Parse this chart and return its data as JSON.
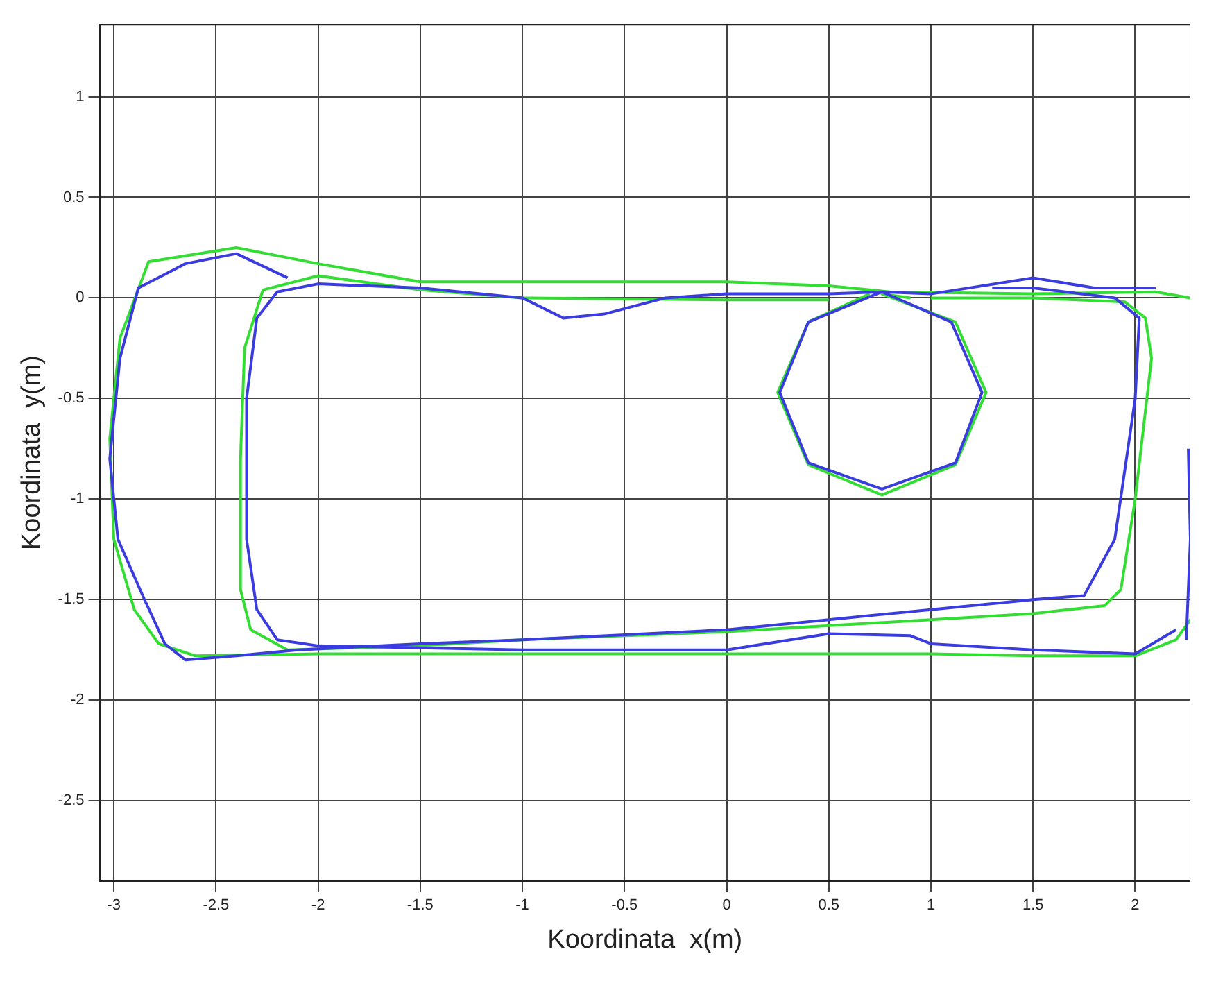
{
  "chart_data": {
    "type": "line",
    "xlabel": "Koordinata  x(m)",
    "ylabel": "Koordinata  y(m)",
    "xlim": [
      -3.07,
      2.27
    ],
    "ylim": [
      -2.9,
      1.36
    ],
    "xticks": [
      -3,
      -2.5,
      -2,
      -1.5,
      -1,
      -0.5,
      0,
      0.5,
      1,
      1.5,
      2
    ],
    "yticks": [
      -2.5,
      -2,
      -1.5,
      -1,
      -0.5,
      0,
      0.5,
      1
    ],
    "grid": true,
    "legend": false,
    "marker": "none",
    "line_style": "solid",
    "series": [
      {
        "color": "#3a3ce0",
        "x": [
          -2.15,
          -2.4,
          -2.65,
          -2.88,
          -2.97,
          -3.02,
          -2.98,
          -2.85,
          -2.75,
          -2.65,
          -2.4,
          -2.1,
          -1.5,
          -1.0,
          0,
          0.5,
          1.0,
          1.5,
          1.75,
          1.9,
          2.0,
          2.02,
          1.9,
          1.5,
          1.3
        ],
        "values": [
          0.1,
          0.22,
          0.17,
          0.05,
          -0.3,
          -0.8,
          -1.2,
          -1.5,
          -1.72,
          -1.8,
          -1.78,
          -1.75,
          -1.72,
          -1.7,
          -1.65,
          -1.6,
          -1.55,
          -1.5,
          -1.48,
          -1.2,
          -0.5,
          -0.1,
          0.0,
          0.05,
          0.05
        ]
      },
      {
        "color": "#3a3ce0",
        "x": [
          2.2,
          2.0,
          1.5,
          1.0,
          0.9,
          0.5,
          0,
          -0.5,
          -1.0,
          -1.5,
          -2.0,
          -2.2,
          -2.3,
          -2.35,
          -2.35,
          -2.3,
          -2.2,
          -2.0,
          -1.5,
          -1.0,
          -0.8,
          -0.6,
          -0.3,
          0,
          0.5,
          0.76,
          1.1,
          1.25,
          1.12,
          0.76,
          0.4,
          0.26,
          0.4,
          0.76,
          1.0,
          1.5,
          1.8,
          2.1
        ],
        "values": [
          -1.65,
          -1.77,
          -1.75,
          -1.72,
          -1.68,
          -1.67,
          -1.75,
          -1.75,
          -1.75,
          -1.74,
          -1.73,
          -1.7,
          -1.55,
          -1.2,
          -0.5,
          -0.1,
          0.03,
          0.07,
          0.05,
          0.0,
          -0.1,
          -0.08,
          0.0,
          0.02,
          0.02,
          0.03,
          -0.12,
          -0.47,
          -0.82,
          -0.95,
          -0.82,
          -0.47,
          -0.12,
          0.03,
          0.02,
          0.1,
          0.05,
          0.05
        ]
      },
      {
        "color": "#3a3ce0",
        "x": [
          2.26,
          2.27,
          2.25
        ],
        "values": [
          -0.75,
          -1.2,
          -1.7
        ]
      },
      {
        "color": "#33dd33",
        "x": [
          2.27,
          2.1,
          1.5,
          0.8,
          0.5,
          0,
          -1.0,
          -1.5,
          -2.0,
          -2.4,
          -2.83,
          -2.97,
          -3.02,
          -3.0,
          -2.9,
          -2.78,
          -2.6,
          -2.0,
          -1.0,
          0,
          1.0,
          1.5,
          2.0,
          2.2,
          2.27
        ],
        "values": [
          0.0,
          0.03,
          0.02,
          0.03,
          0.06,
          0.08,
          0.08,
          0.08,
          0.17,
          0.25,
          0.18,
          -0.2,
          -0.7,
          -1.2,
          -1.55,
          -1.72,
          -1.78,
          -1.77,
          -1.77,
          -1.77,
          -1.77,
          -1.78,
          -1.78,
          -1.7,
          -1.6
        ]
      },
      {
        "color": "#33dd33",
        "x": [
          0.5,
          0,
          -1.0,
          -1.5,
          -2.0,
          -2.27,
          -2.36,
          -2.38,
          -2.38,
          -2.33,
          -2.15,
          -1.5,
          -1.0,
          0,
          1.0,
          1.5,
          1.85,
          1.93,
          2.0,
          2.08,
          2.05,
          1.95,
          1.5,
          1.0
        ],
        "values": [
          -0.01,
          -0.01,
          0.0,
          0.04,
          0.11,
          0.04,
          -0.25,
          -0.8,
          -1.45,
          -1.65,
          -1.75,
          -1.73,
          -1.7,
          -1.66,
          -1.6,
          -1.57,
          -1.53,
          -1.45,
          -1.0,
          -0.3,
          -0.1,
          -0.02,
          0.0,
          0.0
        ]
      },
      {
        "color": "#33dd33",
        "x": [
          0.9,
          0.76,
          1.12,
          1.27,
          1.12,
          0.76,
          0.4,
          0.25,
          0.4,
          0.7
        ],
        "values": [
          0.0,
          0.02,
          -0.12,
          -0.47,
          -0.83,
          -0.98,
          -0.83,
          -0.47,
          -0.12,
          0.02
        ]
      }
    ]
  }
}
